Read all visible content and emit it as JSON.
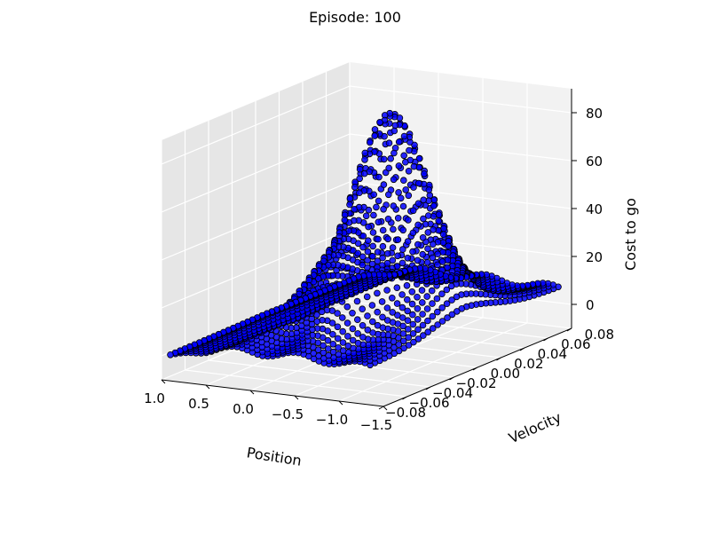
{
  "chart_data": {
    "type": "scatter",
    "projection": "3d",
    "title": "Episode: 100",
    "xlabel": "Position",
    "ylabel": "Velocity",
    "zlabel": "Cost to go",
    "xlim": [
      -1.5,
      1.0
    ],
    "ylim": [
      -0.08,
      0.08
    ],
    "zlim": [
      -10,
      90
    ],
    "xticks": [
      -1.5,
      -1.0,
      -0.5,
      0.0,
      0.5,
      1.0
    ],
    "xtick_labels": [
      "−1.5",
      "−1.0",
      "−0.5",
      "0.0",
      "0.5",
      "1.0"
    ],
    "yticks": [
      -0.08,
      -0.06,
      -0.04,
      -0.02,
      0.0,
      0.02,
      0.04,
      0.06,
      0.08
    ],
    "ytick_labels": [
      "−0.08",
      "−0.06",
      "−0.04",
      "−0.02",
      "0.00",
      "0.02",
      "0.04",
      "0.06",
      "0.08"
    ],
    "zticks": [
      0,
      20,
      40,
      60,
      80
    ],
    "ztick_labels": [
      "0",
      "20",
      "40",
      "60",
      "80"
    ],
    "grid": true,
    "marker_color": "#0000ff",
    "marker_edge_color": "#000000",
    "surface_peak": {
      "position": -0.5,
      "velocity": 0.0,
      "cost": 80
    },
    "grid_size": [
      40,
      40
    ]
  }
}
